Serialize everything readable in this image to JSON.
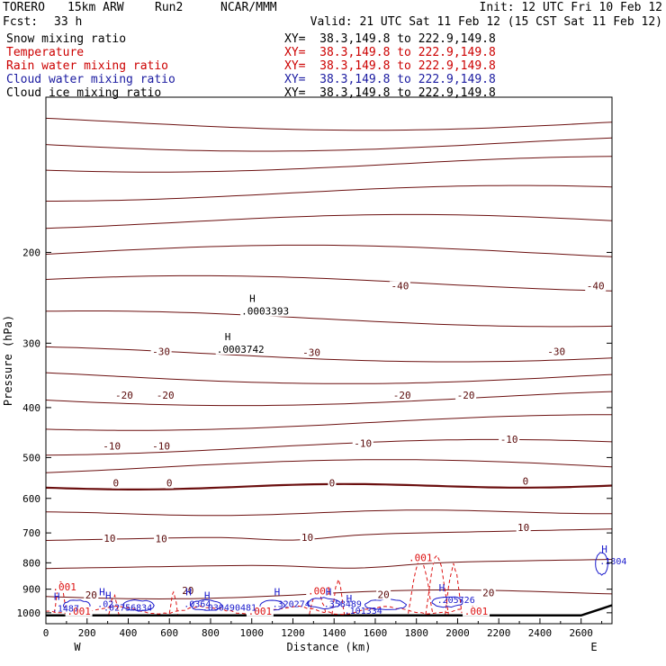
{
  "header": {
    "model": "TORERO",
    "resolution": "15km ARW",
    "run": "Run2",
    "center": "NCAR/MMM",
    "init": "Init: 12 UTC Fri 10 Feb 12",
    "fcst_label": "Fcst:",
    "fcst_value": "33 h",
    "valid": "Valid: 21 UTC Sat 11 Feb 12 (15 CST Sat 11 Feb 12)"
  },
  "legend": [
    {
      "name": "Snow mixing ratio",
      "xy": "XY=  38.3,149.8 to 222.9,149.8",
      "color": "#000000"
    },
    {
      "name": "Temperature",
      "xy": "XY=  38.3,149.8 to 222.9,149.8",
      "color": "#cc0000"
    },
    {
      "name": "Rain water mixing ratio",
      "xy": "XY=  38.3,149.8 to 222.9,149.8",
      "color": "#cc0000"
    },
    {
      "name": "Cloud water mixing ratio",
      "xy": "XY=  38.3,149.8 to 222.9,149.8",
      "color": "#1a1aa0"
    },
    {
      "name": "Cloud ice mixing ratio",
      "xy": "XY=  38.3,149.8 to 222.9,149.8",
      "color": "#000000"
    }
  ],
  "chart_data": {
    "type": "contour cross-section",
    "xlabel": "Distance (km)",
    "ylabel": "Pressure (hPa)",
    "xlim": [
      0,
      2750
    ],
    "ylim": [
      1050,
      100
    ],
    "y_scale": "log",
    "x_ticks": [
      0,
      200,
      400,
      600,
      800,
      1000,
      1200,
      1400,
      1600,
      1800,
      2000,
      2200,
      2400,
      2600
    ],
    "y_ticks": [
      200,
      300,
      400,
      500,
      600,
      700,
      800,
      900,
      1000
    ],
    "x_end_labels": {
      "left": "W",
      "right": "E"
    },
    "temperature_levels": [
      -70,
      -65,
      -60,
      -55,
      -50,
      -45,
      -40,
      -35,
      -30,
      -25,
      -20,
      -15,
      -10,
      -5,
      0,
      5,
      10,
      15,
      20
    ],
    "temperature_labels": [
      {
        "value": "-40",
        "x": 1720,
        "p": 235
      },
      {
        "value": "-40",
        "x": 2670,
        "p": 235
      },
      {
        "value": "-30",
        "x": 560,
        "p": 315
      },
      {
        "value": "-30",
        "x": 1290,
        "p": 316
      },
      {
        "value": "-30",
        "x": 2480,
        "p": 315
      },
      {
        "value": "-20",
        "x": 380,
        "p": 383
      },
      {
        "value": "-20",
        "x": 580,
        "p": 383
      },
      {
        "value": "-20",
        "x": 1730,
        "p": 383
      },
      {
        "value": "-20",
        "x": 2040,
        "p": 383
      },
      {
        "value": "-10",
        "x": 320,
        "p": 480
      },
      {
        "value": "-10",
        "x": 560,
        "p": 480
      },
      {
        "value": "-10",
        "x": 1540,
        "p": 475
      },
      {
        "value": "-10",
        "x": 2250,
        "p": 466
      },
      {
        "value": "0",
        "x": 340,
        "p": 567
      },
      {
        "value": "0",
        "x": 600,
        "p": 567
      },
      {
        "value": "0",
        "x": 1390,
        "p": 567
      },
      {
        "value": "0",
        "x": 2330,
        "p": 562
      },
      {
        "value": "10",
        "x": 310,
        "p": 725
      },
      {
        "value": "10",
        "x": 560,
        "p": 727
      },
      {
        "value": "10",
        "x": 1270,
        "p": 723
      },
      {
        "value": "10",
        "x": 2320,
        "p": 691
      },
      {
        "value": "20",
        "x": 220,
        "p": 935
      },
      {
        "value": "20",
        "x": 690,
        "p": 915
      },
      {
        "value": "20",
        "x": 1640,
        "p": 933
      },
      {
        "value": "20",
        "x": 2150,
        "p": 925
      }
    ],
    "snow_maxima": [
      {
        "marker": "H",
        "value": ".0003393",
        "x": 980,
        "p": 260
      },
      {
        "marker": "H",
        "value": ".0003742",
        "x": 860,
        "p": 308
      }
    ],
    "rain_labels": [
      {
        "value": ".001",
        "x": 90,
        "p": 902
      },
      {
        "value": ".001",
        "x": 1330,
        "p": 918
      },
      {
        "value": ".001",
        "x": 1820,
        "p": 791
      },
      {
        "value": ".001",
        "x": 160,
        "p": 1004
      },
      {
        "value": ".001",
        "x": 1040,
        "p": 1004
      },
      {
        "value": ".001",
        "x": 2090,
        "p": 1004
      }
    ],
    "cloud_water_maxima": [
      {
        "marker": "H",
        "value": ".1804",
        "x": 2690,
        "p": 795
      },
      {
        "marker": "H",
        "value": ".1487",
        "x": 30,
        "p": 982
      },
      {
        "marker": "H",
        "value": ".02",
        "x": 250,
        "p": 963
      },
      {
        "marker": "H",
        "value": ".02756834",
        "x": 280,
        "p": 978
      },
      {
        "marker": "H",
        "value": ".0364",
        "x": 670,
        "p": 963
      },
      {
        "marker": "H",
        "value": ".030490481",
        "x": 760,
        "p": 978
      },
      {
        "marker": "H",
        "value": ".320274",
        "x": 1100,
        "p": 963
      },
      {
        "marker": "H",
        "value": ".358489",
        "x": 1350,
        "p": 963
      },
      {
        "marker": "H",
        "value": ".101334",
        "x": 1450,
        "p": 993
      },
      {
        "marker": "H",
        "value": ".205726",
        "x": 1900,
        "p": 945
      }
    ]
  }
}
